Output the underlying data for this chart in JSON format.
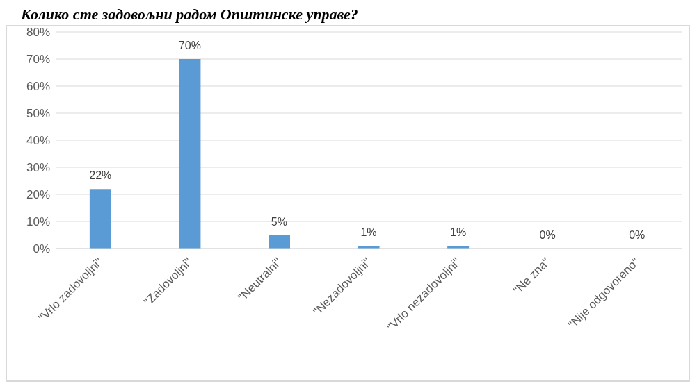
{
  "chart_data": {
    "type": "bar",
    "title": "Колико сте задовољни радом Општинске управе?",
    "categories": [
      "\"Vrlo zadovoljni\"",
      "\"Zadovoljni\"",
      "\"Neutralni\"",
      "\"Nezadovoljni\"",
      "\"Vrlo nezadovoljni\"",
      "\"Ne zna\"",
      "\"Nije odgovoreno\""
    ],
    "values": [
      22,
      70,
      5,
      1,
      1,
      0,
      0
    ],
    "color": "#5b9bd5",
    "ylim": [
      0,
      80
    ],
    "yticks": [
      {
        "value": 0,
        "label": "0%"
      },
      {
        "value": 10,
        "label": "10%"
      },
      {
        "value": 20,
        "label": "20%"
      },
      {
        "value": 30,
        "label": "30%"
      },
      {
        "value": 40,
        "label": "40%"
      },
      {
        "value": 50,
        "label": "50%"
      },
      {
        "value": 60,
        "label": "60%"
      },
      {
        "value": 70,
        "label": "70%"
      },
      {
        "value": 80,
        "label": "80%"
      }
    ],
    "grid": "y",
    "value_labels": [
      "22%",
      "70%",
      "5%",
      "1%",
      "1%",
      "0%",
      "0%"
    ]
  }
}
